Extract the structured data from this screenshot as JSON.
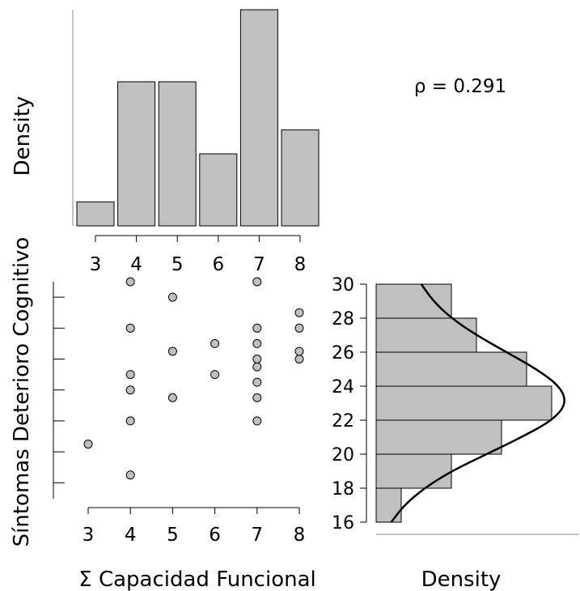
{
  "rho_label": "ρ = 0.291",
  "chart_data": [
    {
      "type": "bar",
      "panel": "top-histogram",
      "ylabel": "Density",
      "categories": [
        "3",
        "4",
        "5",
        "6",
        "7",
        "8"
      ],
      "values": [
        1,
        6,
        6,
        3,
        9,
        4
      ],
      "xticks": [
        "3",
        "4",
        "5",
        "6",
        "7",
        "8"
      ]
    },
    {
      "type": "scatter",
      "panel": "scatter",
      "xlabel": "Σ Capacidad Funcional",
      "ylabel": "Síntomas Deterioro Cognitivo",
      "xticks": [
        "3",
        "4",
        "5",
        "6",
        "7",
        "8"
      ],
      "xlim": [
        3,
        8
      ],
      "ylim": [
        17,
        30
      ],
      "points": [
        {
          "x": 3,
          "y": 19.5
        },
        {
          "x": 4,
          "y": 17.5
        },
        {
          "x": 4,
          "y": 21
        },
        {
          "x": 4,
          "y": 23
        },
        {
          "x": 4,
          "y": 24
        },
        {
          "x": 4,
          "y": 27
        },
        {
          "x": 4,
          "y": 30
        },
        {
          "x": 5,
          "y": 22.5
        },
        {
          "x": 5,
          "y": 25.5
        },
        {
          "x": 5,
          "y": 29
        },
        {
          "x": 6,
          "y": 24
        },
        {
          "x": 6,
          "y": 26
        },
        {
          "x": 7,
          "y": 21
        },
        {
          "x": 7,
          "y": 22.5
        },
        {
          "x": 7,
          "y": 23.5
        },
        {
          "x": 7,
          "y": 24.5
        },
        {
          "x": 7,
          "y": 25
        },
        {
          "x": 7,
          "y": 26
        },
        {
          "x": 7,
          "y": 27
        },
        {
          "x": 7,
          "y": 30
        },
        {
          "x": 8,
          "y": 25
        },
        {
          "x": 8,
          "y": 25.5
        },
        {
          "x": 8,
          "y": 27
        },
        {
          "x": 8,
          "y": 28
        }
      ]
    },
    {
      "type": "bar",
      "panel": "right-histogram",
      "orientation": "horizontal",
      "xlabel": "Density",
      "bins": [
        [
          16,
          18
        ],
        [
          18,
          20
        ],
        [
          20,
          22
        ],
        [
          22,
          24
        ],
        [
          24,
          26
        ],
        [
          26,
          28
        ],
        [
          28,
          30
        ]
      ],
      "values": [
        0.025,
        0.075,
        0.125,
        0.175,
        0.15,
        0.1,
        0.075
      ],
      "density_curve": [
        [
          16,
          0.015
        ],
        [
          17,
          0.028
        ],
        [
          18,
          0.048
        ],
        [
          19,
          0.075
        ],
        [
          20,
          0.11
        ],
        [
          21,
          0.145
        ],
        [
          22,
          0.176
        ],
        [
          23,
          0.19
        ],
        [
          24,
          0.183
        ],
        [
          25,
          0.16
        ],
        [
          26,
          0.13
        ],
        [
          27,
          0.1
        ],
        [
          28,
          0.075
        ],
        [
          29,
          0.057
        ],
        [
          30,
          0.045
        ]
      ],
      "yticks": [
        "16",
        "18",
        "20",
        "22",
        "24",
        "26",
        "28",
        "30"
      ],
      "ylim": [
        16,
        30
      ]
    }
  ]
}
